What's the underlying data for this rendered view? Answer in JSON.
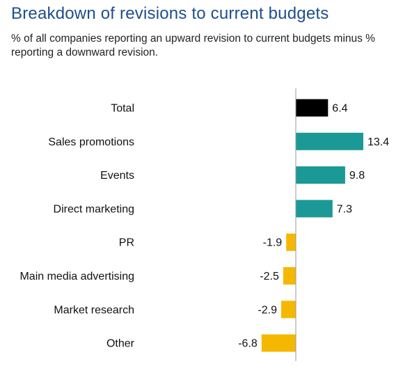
{
  "header": {
    "title": "Breakdown of revisions to current budgets",
    "subtitle": "% of all companies reporting an upward revision to current budgets minus % reporting a downward revision."
  },
  "colors": {
    "total": "#000000",
    "positive": "#1a9996",
    "negative": "#f5b800",
    "axis": "#999999"
  },
  "chart_data": {
    "type": "bar",
    "orientation": "horizontal",
    "title": "Breakdown of revisions to current budgets",
    "subtitle": "% of all companies reporting an upward revision to current budgets minus % reporting a downward revision.",
    "categories": [
      "Total",
      "Sales promotions",
      "Events",
      "Direct marketing",
      "PR",
      "Main media advertising",
      "Market research",
      "Other"
    ],
    "values": [
      6.4,
      13.4,
      9.8,
      7.3,
      -1.9,
      -2.5,
      -2.9,
      -6.8
    ],
    "value_labels": [
      "6.4",
      "13.4",
      "9.8",
      "7.3",
      "-1.9",
      "-2.5",
      "-2.9",
      "-6.8"
    ],
    "xlim": [
      -7,
      14
    ],
    "grid": false,
    "legend": false
  }
}
